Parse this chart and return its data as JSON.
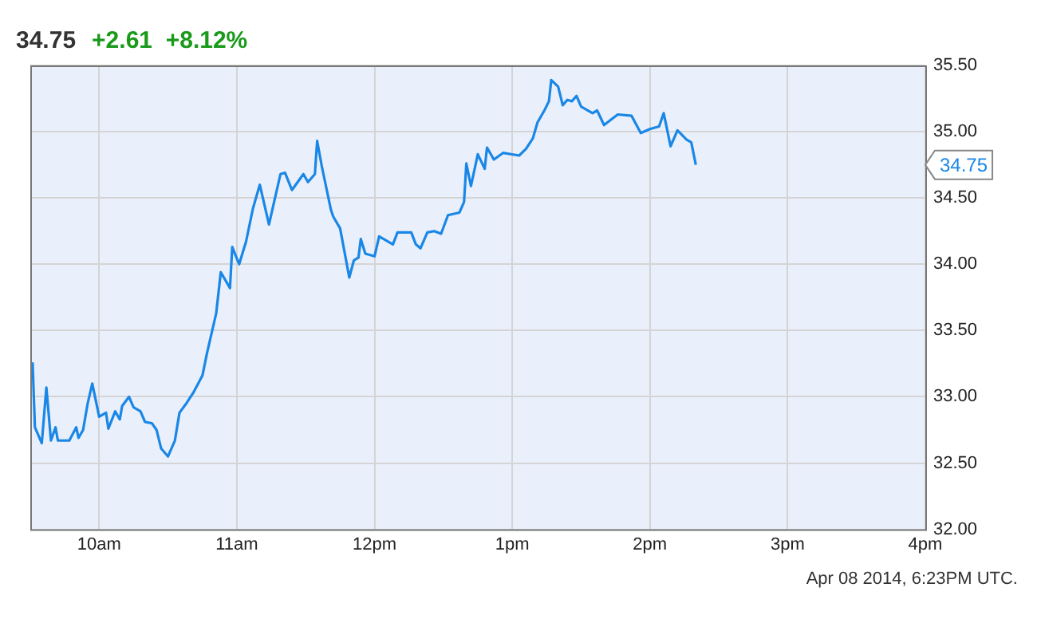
{
  "chart_data": {
    "type": "line",
    "title": "34.75",
    "subtitle": "+2.61  +8.12%",
    "annotations": [
      "34.75",
      "Apr 08 2014, 6:23PM UTC."
    ],
    "series": [
      {
        "color": "#1a87e6",
        "x": [
          "2014-04-08T09:31",
          "2014-04-08T09:32",
          "2014-04-08T09:35",
          "2014-04-08T09:37",
          "2014-04-08T09:39",
          "2014-04-08T09:41",
          "2014-04-08T09:42",
          "2014-04-08T09:47",
          "2014-04-08T09:50",
          "2014-04-08T09:51",
          "2014-04-08T09:53",
          "2014-04-08T09:55",
          "2014-04-08T09:57",
          "2014-04-08T10:00",
          "2014-04-08T10:03",
          "2014-04-08T10:04",
          "2014-04-08T10:07",
          "2014-04-08T10:09",
          "2014-04-08T10:10",
          "2014-04-08T10:13",
          "2014-04-08T10:15",
          "2014-04-08T10:18",
          "2014-04-08T10:20",
          "2014-04-08T10:23",
          "2014-04-08T10:25",
          "2014-04-08T10:27",
          "2014-04-08T10:28",
          "2014-04-08T10:30",
          "2014-04-08T10:33",
          "2014-04-08T10:35",
          "2014-04-08T10:38",
          "2014-04-08T10:41",
          "2014-04-08T10:45",
          "2014-04-08T10:47",
          "2014-04-08T10:51",
          "2014-04-08T10:53",
          "2014-04-08T10:57",
          "2014-04-08T10:58",
          "2014-04-08T11:01",
          "2014-04-08T11:04",
          "2014-04-08T11:07",
          "2014-04-08T11:10",
          "2014-04-08T11:14",
          "2014-04-08T11:19",
          "2014-04-08T11:21",
          "2014-04-08T11:24",
          "2014-04-08T11:29",
          "2014-04-08T11:31",
          "2014-04-08T11:34",
          "2014-04-08T11:35",
          "2014-04-08T11:37",
          "2014-04-08T11:41",
          "2014-04-08T11:42",
          "2014-04-08T11:45",
          "2014-04-08T11:49",
          "2014-04-08T11:51",
          "2014-04-08T11:53",
          "2014-04-08T11:54",
          "2014-04-08T11:56",
          "2014-04-08T12:00",
          "2014-04-08T12:02",
          "2014-04-08T12:08",
          "2014-04-08T12:10",
          "2014-04-08T12:16",
          "2014-04-08T12:18",
          "2014-04-08T12:20",
          "2014-04-08T12:23",
          "2014-04-08T12:26",
          "2014-04-08T12:29",
          "2014-04-08T12:32",
          "2014-04-08T12:37",
          "2014-04-08T12:39",
          "2014-04-08T12:40",
          "2014-04-08T12:42",
          "2014-04-08T12:45",
          "2014-04-08T12:48",
          "2014-04-08T12:49",
          "2014-04-08T12:52",
          "2014-04-08T12:56",
          "2014-04-08T13:03",
          "2014-04-08T13:06",
          "2014-04-08T13:09",
          "2014-04-08T13:11",
          "2014-04-08T13:14",
          "2014-04-08T13:16",
          "2014-04-08T13:17",
          "2014-04-08T13:20",
          "2014-04-08T13:22",
          "2014-04-08T13:24",
          "2014-04-08T13:26",
          "2014-04-08T13:28",
          "2014-04-08T13:30",
          "2014-04-08T13:35",
          "2014-04-08T13:37",
          "2014-04-08T13:40",
          "2014-04-08T13:46",
          "2014-04-08T13:52",
          "2014-04-08T13:56",
          "2014-04-08T14:00",
          "2014-04-08T14:04",
          "2014-04-08T14:06",
          "2014-04-08T14:09",
          "2014-04-08T14:12",
          "2014-04-08T14:16",
          "2014-04-08T14:18",
          "2014-04-08T14:20"
        ],
        "values": [
          33.26,
          32.77,
          32.65,
          33.07,
          32.67,
          32.77,
          32.67,
          32.67,
          32.77,
          32.69,
          32.75,
          32.95,
          33.1,
          32.85,
          32.88,
          32.76,
          32.89,
          32.83,
          32.93,
          33.0,
          32.92,
          32.89,
          32.81,
          32.8,
          32.75,
          32.61,
          32.59,
          32.55,
          32.67,
          32.88,
          32.95,
          33.03,
          33.16,
          33.33,
          33.63,
          33.94,
          33.82,
          34.13,
          34.0,
          34.17,
          34.42,
          34.6,
          34.3,
          34.68,
          34.69,
          34.56,
          34.68,
          34.62,
          34.68,
          34.93,
          34.74,
          34.41,
          34.36,
          34.27,
          33.9,
          34.03,
          34.05,
          34.19,
          34.08,
          34.06,
          34.21,
          34.15,
          34.24,
          34.24,
          34.15,
          34.12,
          34.24,
          34.25,
          34.23,
          34.37,
          34.39,
          34.47,
          34.76,
          34.59,
          34.83,
          34.72,
          34.88,
          34.79,
          34.84,
          34.82,
          34.87,
          34.95,
          35.07,
          35.16,
          35.23,
          35.39,
          35.34,
          35.2,
          35.24,
          35.23,
          35.27,
          35.19,
          35.14,
          35.16,
          35.05,
          35.13,
          35.12,
          34.99,
          35.02,
          35.04,
          35.14,
          34.89,
          35.01,
          34.94,
          34.92,
          34.75
        ]
      }
    ],
    "xlim": [
      "2014-04-08T09:30",
      "2014-04-08T16:00"
    ],
    "xticks": [
      {
        "value": "2014-04-08T10:00",
        "label": "10am"
      },
      {
        "value": "2014-04-08T11:00",
        "label": "11am"
      },
      {
        "value": "2014-04-08T12:00",
        "label": "12pm"
      },
      {
        "value": "2014-04-08T13:00",
        "label": "1pm"
      },
      {
        "value": "2014-04-08T14:00",
        "label": "2pm"
      },
      {
        "value": "2014-04-08T15:00",
        "label": "3pm"
      },
      {
        "value": "2014-04-08T16:00",
        "label": "4pm"
      }
    ],
    "ylim": [
      32,
      35.5
    ],
    "yticks": [
      {
        "value": 32,
        "label": "32.00"
      },
      {
        "value": 32.5,
        "label": "32.50"
      },
      {
        "value": 33,
        "label": "33.00"
      },
      {
        "value": 33.5,
        "label": "33.50"
      },
      {
        "value": 34,
        "label": "34.00"
      },
      {
        "value": 34.5,
        "label": "34.50"
      },
      {
        "value": 35,
        "label": "35.00"
      },
      {
        "value": 35.5,
        "label": "35.50"
      }
    ],
    "grid": true,
    "legend": false,
    "marker": "none",
    "line_style": "solid"
  }
}
